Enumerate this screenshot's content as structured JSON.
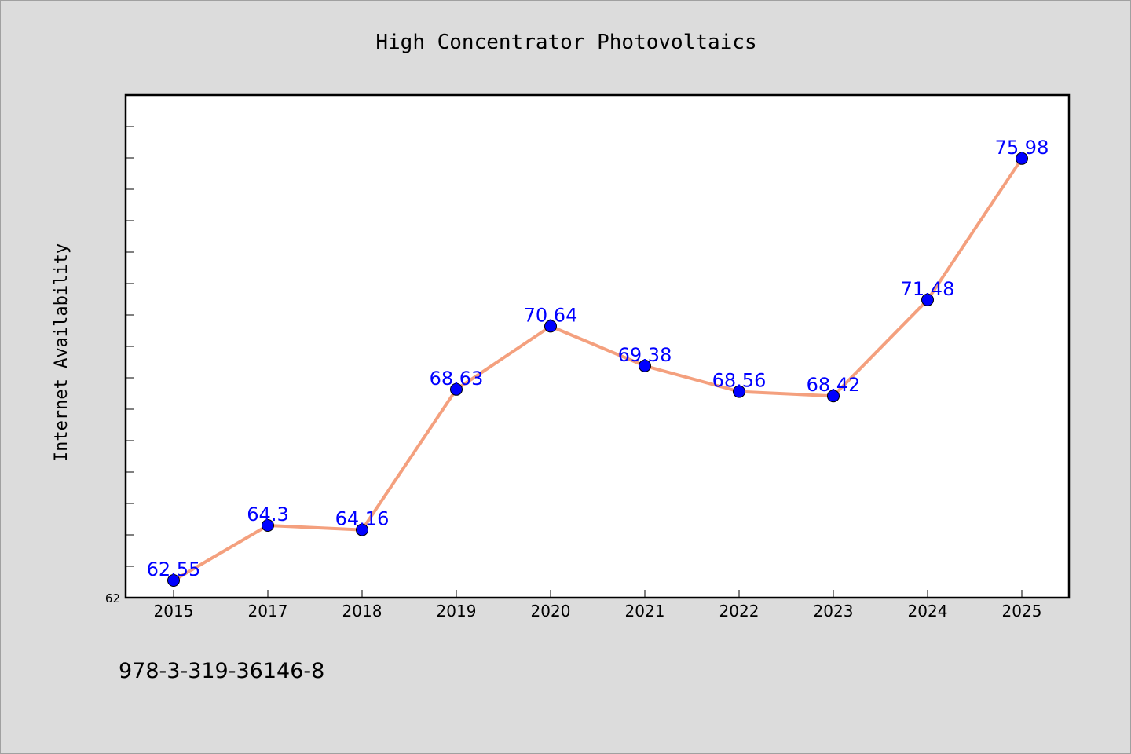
{
  "chart_data": {
    "type": "line",
    "title": "High Concentrator Photovoltaics",
    "xlabel": "",
    "ylabel": "Internet Availability",
    "categories": [
      "2015",
      "2017",
      "2018",
      "2019",
      "2020",
      "2021",
      "2022",
      "2023",
      "2024",
      "2025"
    ],
    "series": [
      {
        "values": [
          62.55,
          64.3,
          64.16,
          68.63,
          70.64,
          69.38,
          68.56,
          68.42,
          71.48,
          75.98
        ],
        "data_labels": [
          "62.55",
          "64.3",
          "64.16",
          "68.63",
          "70.64",
          "69.38",
          "68.56",
          "68.42",
          "71.48",
          "75.98"
        ],
        "line_color": "#f4a07e",
        "marker_color": "#0000ff"
      }
    ],
    "ylim": [
      62,
      78
    ],
    "y_tick_labels": [
      "62"
    ],
    "grid": false,
    "legend": "none"
  },
  "footnote": "978-3-319-36146-8",
  "colors": {
    "background": "#dcdcdc",
    "plot_area": "#ffffff",
    "data_label": "#0000ff"
  }
}
